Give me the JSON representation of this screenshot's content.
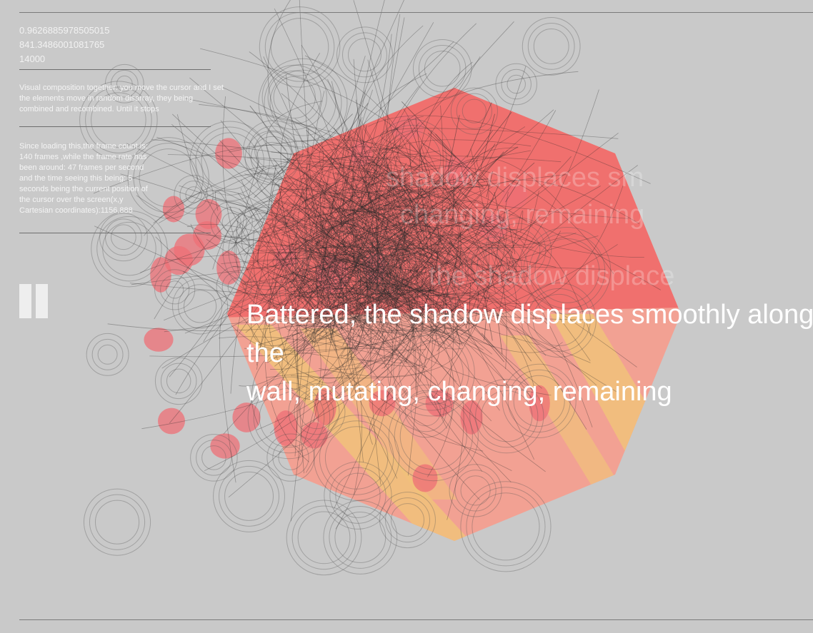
{
  "readouts": {
    "random_value": "0.9626885978505015",
    "noise_value": "841.3486001081765",
    "max_count": "14000"
  },
  "intro_text": "Visual composition together: you move the cursor and I set the elements move in random disarray, they being combined and recombined. Until it stops",
  "status_text": "Since loading this,the frame count is: 140 frames ,while the frame rate has been around: 47 frames per second and the time seeing this being: 5 seconds being the current position of the cursor over the screen(x,y Cartesian coordinates):1156,888",
  "headline": "Battered, the shadow displaces smoothly along the\nwall, mutating, changing, remaining",
  "ghost_lines": [
    "shadow displaces sm",
    "changing, remaining",
    "the shadow displace"
  ],
  "colors": {
    "background": "#c9c9c9",
    "polygon_red": "#f06a6a",
    "polygon_salmon": "#f49f90",
    "stripe_yellow": "#f1c27a",
    "blob_red": "#ee6f75",
    "stroke_gray": "#2b2b2b",
    "text_white": "#ffffff"
  },
  "icons": {
    "pause": "pause-icon"
  }
}
